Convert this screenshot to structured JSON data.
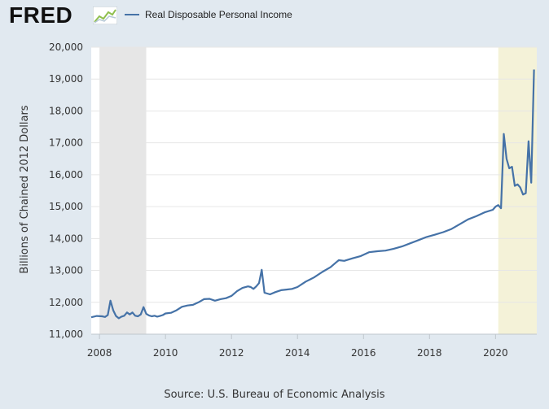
{
  "header": {
    "logo_text": "FRED",
    "logo_graph_icon": "fred-graph-icon"
  },
  "legend": {
    "label": "Real Disposable Personal Income",
    "color": "#4572a7"
  },
  "source": "Source: U.S. Bureau of Economic Analysis",
  "colors": {
    "background": "#e1e9f0",
    "plot_background": "#ffffff",
    "recession_shade": "#e6e6e6",
    "covid_shade": "#f4f2d8",
    "gridline": "#e6e6e6",
    "line": "#4572a7"
  },
  "chart_data": {
    "type": "line",
    "title": "",
    "ylabel": "Billions of Chained 2012 Dollars",
    "xlabel": "",
    "ylim": [
      11000,
      20000
    ],
    "xlim": [
      "2007-10",
      "2021-04"
    ],
    "grid": "horizontal",
    "x_ticks": [
      "2008",
      "2010",
      "2012",
      "2014",
      "2016",
      "2018",
      "2020"
    ],
    "y_ticks": [
      "11,000",
      "12,000",
      "13,000",
      "14,000",
      "15,000",
      "16,000",
      "17,000",
      "18,000",
      "19,000",
      "20,000"
    ],
    "shaded_periods": [
      {
        "start": "2008-01",
        "end": "2009-06",
        "color": "#e6e6e6"
      },
      {
        "start": "2020-02",
        "end": "2021-04",
        "color": "#f4f2d8"
      }
    ],
    "series": [
      {
        "name": "Real Disposable Personal Income",
        "color": "#4572a7",
        "points": [
          [
            "2007-10",
            11530
          ],
          [
            "2007-12",
            11570
          ],
          [
            "2008-02",
            11560
          ],
          [
            "2008-03",
            11540
          ],
          [
            "2008-04",
            11600
          ],
          [
            "2008-05",
            12050
          ],
          [
            "2008-06",
            11750
          ],
          [
            "2008-07",
            11570
          ],
          [
            "2008-08",
            11500
          ],
          [
            "2008-09",
            11550
          ],
          [
            "2008-10",
            11580
          ],
          [
            "2008-11",
            11680
          ],
          [
            "2008-12",
            11620
          ],
          [
            "2009-01",
            11680
          ],
          [
            "2009-02",
            11580
          ],
          [
            "2009-03",
            11560
          ],
          [
            "2009-04",
            11620
          ],
          [
            "2009-05",
            11850
          ],
          [
            "2009-06",
            11640
          ],
          [
            "2009-07",
            11590
          ],
          [
            "2009-08",
            11560
          ],
          [
            "2009-09",
            11580
          ],
          [
            "2009-10",
            11550
          ],
          [
            "2009-11",
            11570
          ],
          [
            "2009-12",
            11600
          ],
          [
            "2010-01",
            11650
          ],
          [
            "2010-03",
            11670
          ],
          [
            "2010-05",
            11750
          ],
          [
            "2010-07",
            11860
          ],
          [
            "2010-09",
            11900
          ],
          [
            "2010-11",
            11920
          ],
          [
            "2011-01",
            12000
          ],
          [
            "2011-03",
            12100
          ],
          [
            "2011-05",
            12110
          ],
          [
            "2011-07",
            12050
          ],
          [
            "2011-09",
            12100
          ],
          [
            "2011-11",
            12130
          ],
          [
            "2012-01",
            12200
          ],
          [
            "2012-03",
            12350
          ],
          [
            "2012-05",
            12450
          ],
          [
            "2012-07",
            12500
          ],
          [
            "2012-08",
            12480
          ],
          [
            "2012-09",
            12420
          ],
          [
            "2012-10",
            12500
          ],
          [
            "2012-11",
            12600
          ],
          [
            "2012-12",
            13020
          ],
          [
            "2013-01",
            12300
          ],
          [
            "2013-03",
            12250
          ],
          [
            "2013-05",
            12320
          ],
          [
            "2013-07",
            12380
          ],
          [
            "2013-09",
            12400
          ],
          [
            "2013-11",
            12420
          ],
          [
            "2014-01",
            12480
          ],
          [
            "2014-04",
            12650
          ],
          [
            "2014-07",
            12780
          ],
          [
            "2014-10",
            12950
          ],
          [
            "2015-01",
            13100
          ],
          [
            "2015-03",
            13250
          ],
          [
            "2015-04",
            13320
          ],
          [
            "2015-06",
            13300
          ],
          [
            "2015-09",
            13380
          ],
          [
            "2015-12",
            13450
          ],
          [
            "2016-03",
            13570
          ],
          [
            "2016-06",
            13600
          ],
          [
            "2016-09",
            13620
          ],
          [
            "2016-12",
            13680
          ],
          [
            "2017-03",
            13750
          ],
          [
            "2017-06",
            13850
          ],
          [
            "2017-09",
            13950
          ],
          [
            "2017-12",
            14050
          ],
          [
            "2018-03",
            14120
          ],
          [
            "2018-06",
            14200
          ],
          [
            "2018-09",
            14300
          ],
          [
            "2018-12",
            14450
          ],
          [
            "2019-03",
            14600
          ],
          [
            "2019-06",
            14700
          ],
          [
            "2019-09",
            14820
          ],
          [
            "2019-12",
            14900
          ],
          [
            "2020-01",
            15000
          ],
          [
            "2020-02",
            15050
          ],
          [
            "2020-03",
            14950
          ],
          [
            "2020-04",
            17280
          ],
          [
            "2020-05",
            16500
          ],
          [
            "2020-06",
            16200
          ],
          [
            "2020-07",
            16250
          ],
          [
            "2020-08",
            15650
          ],
          [
            "2020-09",
            15700
          ],
          [
            "2020-10",
            15600
          ],
          [
            "2020-11",
            15380
          ],
          [
            "2020-12",
            15420
          ],
          [
            "2021-01",
            17050
          ],
          [
            "2021-02",
            15750
          ],
          [
            "2021-03",
            19300
          ]
        ]
      }
    ],
    "source": "Source: U.S. Bureau of Economic Analysis"
  }
}
